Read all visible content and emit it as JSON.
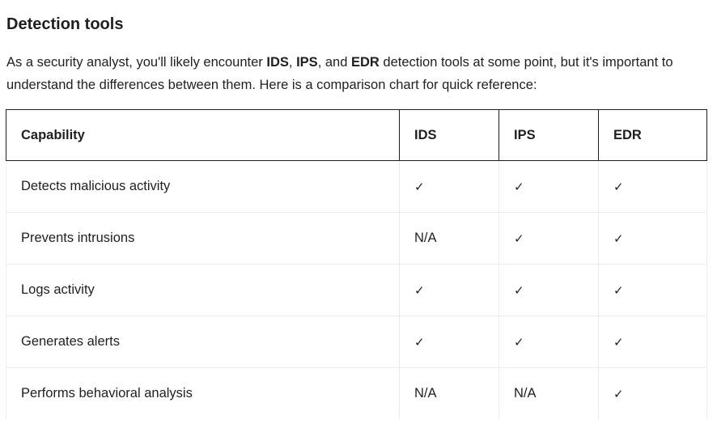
{
  "section": {
    "title": "Detection tools"
  },
  "intro": {
    "part1": "As a security analyst, you'll likely encounter ",
    "ids": "IDS",
    "sep1": ", ",
    "ips": "IPS",
    "sep2": ", and ",
    "edr": "EDR",
    "part2": " detection tools at some point, but it's important to understand the differences between them. Here is a comparison chart for quick reference:"
  },
  "table": {
    "headers": [
      "Capability",
      "IDS",
      "IPS",
      "EDR"
    ],
    "rows": [
      [
        "Detects malicious activity",
        "✓",
        "✓",
        "✓"
      ],
      [
        "Prevents intrusions",
        "N/A",
        "✓",
        "✓"
      ],
      [
        "Logs activity",
        "✓",
        "✓",
        "✓"
      ],
      [
        "Generates alerts",
        "✓",
        "✓",
        "✓"
      ],
      [
        "Performs behavioral analysis",
        "N/A",
        "N/A",
        "✓"
      ]
    ]
  }
}
